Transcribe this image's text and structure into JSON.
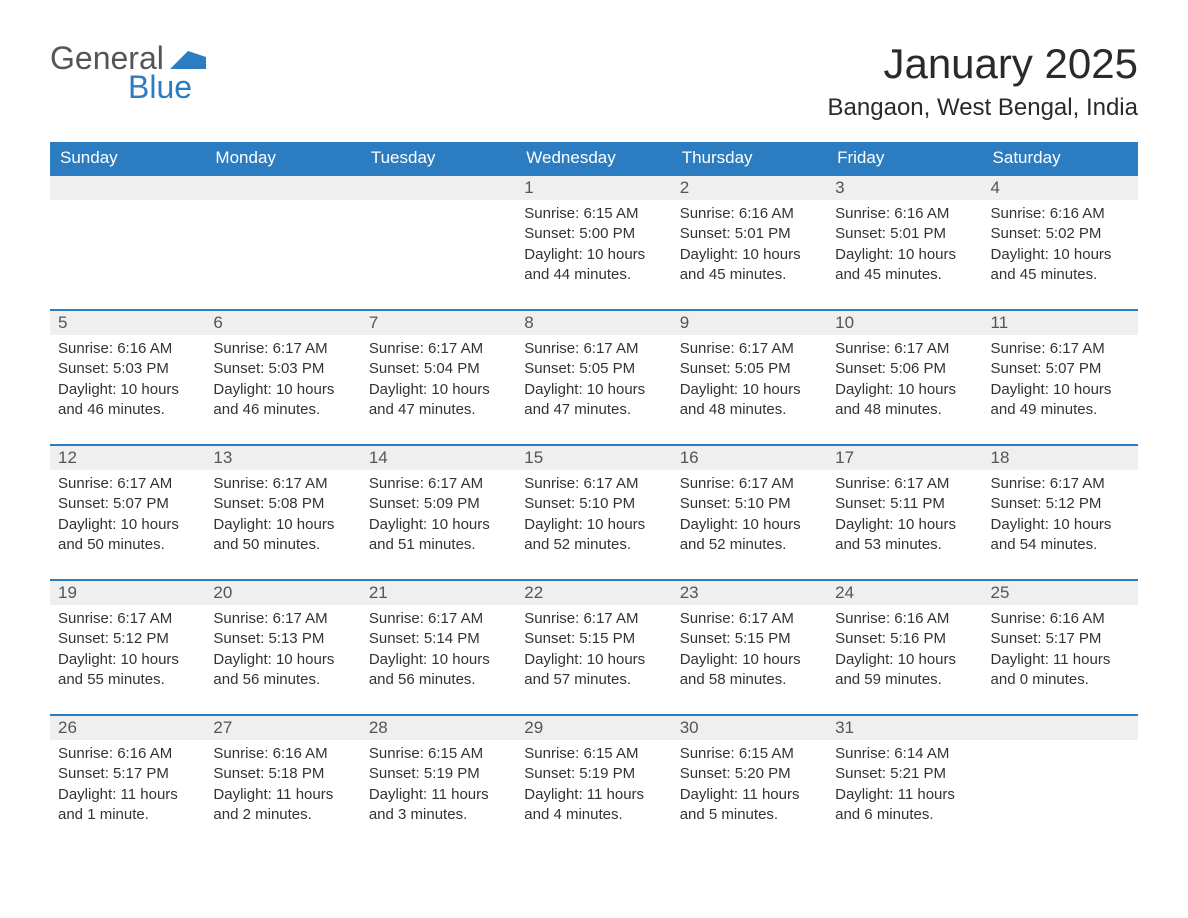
{
  "brand": {
    "general": "General",
    "blue": "Blue",
    "accent_color": "#2b7cc0"
  },
  "title": "January 2025",
  "location": "Bangaon, West Bengal, India",
  "colors": {
    "header_bg": "#2b7cc0",
    "header_text": "#ffffff",
    "daynum_bg": "#efefef",
    "daynum_text": "#555555",
    "body_text": "#333333",
    "row_border": "#2b7cc0",
    "page_bg": "#ffffff"
  },
  "typography": {
    "title_fontsize": 42,
    "location_fontsize": 24,
    "header_fontsize": 17,
    "daynum_fontsize": 17,
    "body_fontsize": 15,
    "font_family": "Arial"
  },
  "day_names": [
    "Sunday",
    "Monday",
    "Tuesday",
    "Wednesday",
    "Thursday",
    "Friday",
    "Saturday"
  ],
  "weeks": [
    [
      null,
      null,
      null,
      {
        "num": "1",
        "sunrise": "Sunrise: 6:15 AM",
        "sunset": "Sunset: 5:00 PM",
        "daylight": "Daylight: 10 hours and 44 minutes."
      },
      {
        "num": "2",
        "sunrise": "Sunrise: 6:16 AM",
        "sunset": "Sunset: 5:01 PM",
        "daylight": "Daylight: 10 hours and 45 minutes."
      },
      {
        "num": "3",
        "sunrise": "Sunrise: 6:16 AM",
        "sunset": "Sunset: 5:01 PM",
        "daylight": "Daylight: 10 hours and 45 minutes."
      },
      {
        "num": "4",
        "sunrise": "Sunrise: 6:16 AM",
        "sunset": "Sunset: 5:02 PM",
        "daylight": "Daylight: 10 hours and 45 minutes."
      }
    ],
    [
      {
        "num": "5",
        "sunrise": "Sunrise: 6:16 AM",
        "sunset": "Sunset: 5:03 PM",
        "daylight": "Daylight: 10 hours and 46 minutes."
      },
      {
        "num": "6",
        "sunrise": "Sunrise: 6:17 AM",
        "sunset": "Sunset: 5:03 PM",
        "daylight": "Daylight: 10 hours and 46 minutes."
      },
      {
        "num": "7",
        "sunrise": "Sunrise: 6:17 AM",
        "sunset": "Sunset: 5:04 PM",
        "daylight": "Daylight: 10 hours and 47 minutes."
      },
      {
        "num": "8",
        "sunrise": "Sunrise: 6:17 AM",
        "sunset": "Sunset: 5:05 PM",
        "daylight": "Daylight: 10 hours and 47 minutes."
      },
      {
        "num": "9",
        "sunrise": "Sunrise: 6:17 AM",
        "sunset": "Sunset: 5:05 PM",
        "daylight": "Daylight: 10 hours and 48 minutes."
      },
      {
        "num": "10",
        "sunrise": "Sunrise: 6:17 AM",
        "sunset": "Sunset: 5:06 PM",
        "daylight": "Daylight: 10 hours and 48 minutes."
      },
      {
        "num": "11",
        "sunrise": "Sunrise: 6:17 AM",
        "sunset": "Sunset: 5:07 PM",
        "daylight": "Daylight: 10 hours and 49 minutes."
      }
    ],
    [
      {
        "num": "12",
        "sunrise": "Sunrise: 6:17 AM",
        "sunset": "Sunset: 5:07 PM",
        "daylight": "Daylight: 10 hours and 50 minutes."
      },
      {
        "num": "13",
        "sunrise": "Sunrise: 6:17 AM",
        "sunset": "Sunset: 5:08 PM",
        "daylight": "Daylight: 10 hours and 50 minutes."
      },
      {
        "num": "14",
        "sunrise": "Sunrise: 6:17 AM",
        "sunset": "Sunset: 5:09 PM",
        "daylight": "Daylight: 10 hours and 51 minutes."
      },
      {
        "num": "15",
        "sunrise": "Sunrise: 6:17 AM",
        "sunset": "Sunset: 5:10 PM",
        "daylight": "Daylight: 10 hours and 52 minutes."
      },
      {
        "num": "16",
        "sunrise": "Sunrise: 6:17 AM",
        "sunset": "Sunset: 5:10 PM",
        "daylight": "Daylight: 10 hours and 52 minutes."
      },
      {
        "num": "17",
        "sunrise": "Sunrise: 6:17 AM",
        "sunset": "Sunset: 5:11 PM",
        "daylight": "Daylight: 10 hours and 53 minutes."
      },
      {
        "num": "18",
        "sunrise": "Sunrise: 6:17 AM",
        "sunset": "Sunset: 5:12 PM",
        "daylight": "Daylight: 10 hours and 54 minutes."
      }
    ],
    [
      {
        "num": "19",
        "sunrise": "Sunrise: 6:17 AM",
        "sunset": "Sunset: 5:12 PM",
        "daylight": "Daylight: 10 hours and 55 minutes."
      },
      {
        "num": "20",
        "sunrise": "Sunrise: 6:17 AM",
        "sunset": "Sunset: 5:13 PM",
        "daylight": "Daylight: 10 hours and 56 minutes."
      },
      {
        "num": "21",
        "sunrise": "Sunrise: 6:17 AM",
        "sunset": "Sunset: 5:14 PM",
        "daylight": "Daylight: 10 hours and 56 minutes."
      },
      {
        "num": "22",
        "sunrise": "Sunrise: 6:17 AM",
        "sunset": "Sunset: 5:15 PM",
        "daylight": "Daylight: 10 hours and 57 minutes."
      },
      {
        "num": "23",
        "sunrise": "Sunrise: 6:17 AM",
        "sunset": "Sunset: 5:15 PM",
        "daylight": "Daylight: 10 hours and 58 minutes."
      },
      {
        "num": "24",
        "sunrise": "Sunrise: 6:16 AM",
        "sunset": "Sunset: 5:16 PM",
        "daylight": "Daylight: 10 hours and 59 minutes."
      },
      {
        "num": "25",
        "sunrise": "Sunrise: 6:16 AM",
        "sunset": "Sunset: 5:17 PM",
        "daylight": "Daylight: 11 hours and 0 minutes."
      }
    ],
    [
      {
        "num": "26",
        "sunrise": "Sunrise: 6:16 AM",
        "sunset": "Sunset: 5:17 PM",
        "daylight": "Daylight: 11 hours and 1 minute."
      },
      {
        "num": "27",
        "sunrise": "Sunrise: 6:16 AM",
        "sunset": "Sunset: 5:18 PM",
        "daylight": "Daylight: 11 hours and 2 minutes."
      },
      {
        "num": "28",
        "sunrise": "Sunrise: 6:15 AM",
        "sunset": "Sunset: 5:19 PM",
        "daylight": "Daylight: 11 hours and 3 minutes."
      },
      {
        "num": "29",
        "sunrise": "Sunrise: 6:15 AM",
        "sunset": "Sunset: 5:19 PM",
        "daylight": "Daylight: 11 hours and 4 minutes."
      },
      {
        "num": "30",
        "sunrise": "Sunrise: 6:15 AM",
        "sunset": "Sunset: 5:20 PM",
        "daylight": "Daylight: 11 hours and 5 minutes."
      },
      {
        "num": "31",
        "sunrise": "Sunrise: 6:14 AM",
        "sunset": "Sunset: 5:21 PM",
        "daylight": "Daylight: 11 hours and 6 minutes."
      },
      null
    ]
  ]
}
